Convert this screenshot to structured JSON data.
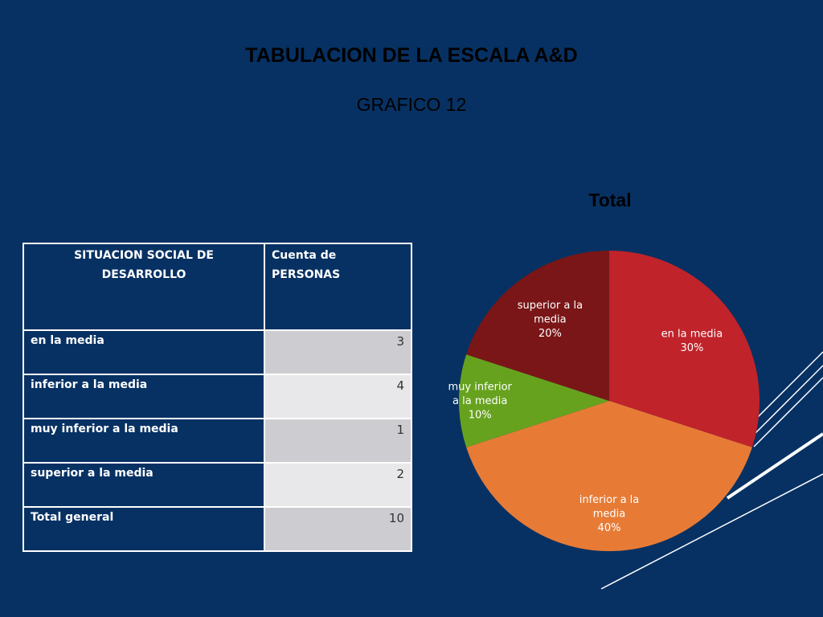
{
  "slide": {
    "title": "TABULACION DE LA ESCALA A&D",
    "subtitle": "GRAFICO 12"
  },
  "table": {
    "headers": [
      "SITUACION SOCIAL DE DESARROLLO",
      "Cuenta de PERSONAS"
    ],
    "rows": [
      {
        "label": "en la media",
        "value": "3"
      },
      {
        "label": "inferior a la media",
        "value": "4"
      },
      {
        "label": "muy inferior a la media",
        "value": "1"
      },
      {
        "label": "superior a la media",
        "value": "2"
      },
      {
        "label": "Total general",
        "value": "10"
      }
    ]
  },
  "chart_data": {
    "type": "pie",
    "title": "Total",
    "categories": [
      "en la media",
      "inferior a la media",
      "muy inferior a la media",
      "superior a la media"
    ],
    "values": [
      3,
      4,
      1,
      2
    ],
    "percent_labels": [
      "30%",
      "40%",
      "10%",
      "20%"
    ],
    "label_lines": [
      [
        "en la media",
        "30%"
      ],
      [
        "inferior a la",
        "media",
        "40%"
      ],
      [
        "muy inferior",
        "a la media",
        "10%"
      ],
      [
        "superior a la",
        "media",
        "20%"
      ]
    ],
    "colors": [
      "#c0232a",
      "#e77b36",
      "#67a21f",
      "#7a1617"
    ],
    "label_color": "#ffffff",
    "start_angle": "12 o'clock",
    "direction": "clockwise",
    "legend": "none"
  },
  "theme": {
    "background": "#073163",
    "decor_line_color": "#ffffff"
  }
}
